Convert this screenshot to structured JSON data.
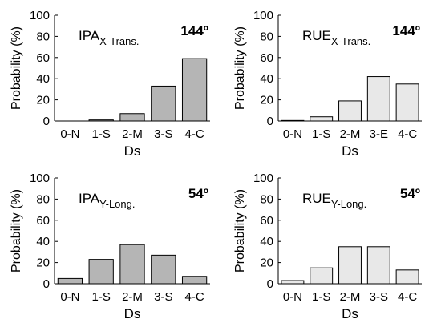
{
  "figure": {
    "ylabel": "Probability (%)",
    "xlabel": "Ds"
  },
  "colors": {
    "dark_bar": "#b5b5b5",
    "light_bar": "#e8e8e8",
    "axis": "#000000"
  },
  "chart_data": [
    {
      "type": "bar",
      "panel": "top-left",
      "label_main": "IPA",
      "label_sub": "X-Trans.",
      "angle": "144º",
      "categories": [
        "0-N",
        "1-S",
        "2-M",
        "3-S",
        "4-C"
      ],
      "values": [
        0,
        1,
        7,
        33,
        59
      ],
      "ylim": [
        0,
        100
      ],
      "yticks": [
        0,
        20,
        40,
        60,
        80,
        100
      ],
      "xlabel": "Ds",
      "ylabel": "Probability (%)",
      "bar_color": "dark"
    },
    {
      "type": "bar",
      "panel": "top-right",
      "label_main": "RUE",
      "label_sub": "X-Trans.",
      "angle": "144º",
      "categories": [
        "0-N",
        "1-S",
        "2-M",
        "3-E",
        "4-C"
      ],
      "values": [
        0.5,
        4,
        19,
        42,
        35
      ],
      "ylim": [
        0,
        100
      ],
      "yticks": [
        0,
        20,
        40,
        60,
        80,
        100
      ],
      "xlabel": "Ds",
      "ylabel": "Probability (%)",
      "bar_color": "light"
    },
    {
      "type": "bar",
      "panel": "bottom-left",
      "label_main": "IPA",
      "label_sub": "Y-Long.",
      "angle": "54º",
      "categories": [
        "0-N",
        "1-S",
        "2-M",
        "3-S",
        "4-C"
      ],
      "values": [
        5,
        23,
        37,
        27,
        7
      ],
      "ylim": [
        0,
        100
      ],
      "yticks": [
        0,
        20,
        40,
        60,
        80,
        100
      ],
      "xlabel": "Ds",
      "ylabel": "Probability (%)",
      "bar_color": "dark"
    },
    {
      "type": "bar",
      "panel": "bottom-right",
      "label_main": "RUE",
      "label_sub": "Y-Long.",
      "angle": "54º",
      "categories": [
        "0-N",
        "1-S",
        "2-M",
        "3-S",
        "4-C"
      ],
      "values": [
        3,
        15,
        35,
        35,
        13
      ],
      "ylim": [
        0,
        100
      ],
      "yticks": [
        0,
        20,
        40,
        60,
        80,
        100
      ],
      "xlabel": "Ds",
      "ylabel": "Probability (%)",
      "bar_color": "light"
    }
  ]
}
